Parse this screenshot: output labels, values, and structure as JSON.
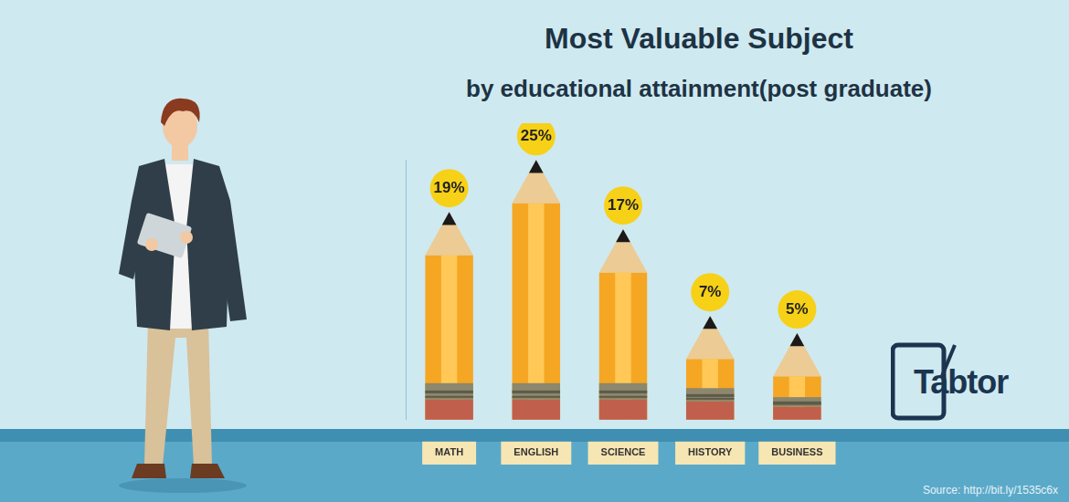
{
  "chart_data": {
    "type": "bar",
    "title": "Most Valuable Subject",
    "subtitle": "by educational attainment(post graduate)",
    "categories": [
      "MATH",
      "ENGLISH",
      "SCIENCE",
      "HISTORY",
      "BUSINESS"
    ],
    "values": [
      19,
      25,
      17,
      7,
      5
    ],
    "value_labels": [
      "19%",
      "25%",
      "17%",
      "7%",
      "5%"
    ],
    "color": "#f5a623",
    "ylim": [
      0,
      30
    ],
    "grid": false,
    "data_labels": true,
    "tick_labels": "x",
    "annotations": [
      "Source: http://bit.ly/1535c6x",
      "Tabtor"
    ]
  }
}
